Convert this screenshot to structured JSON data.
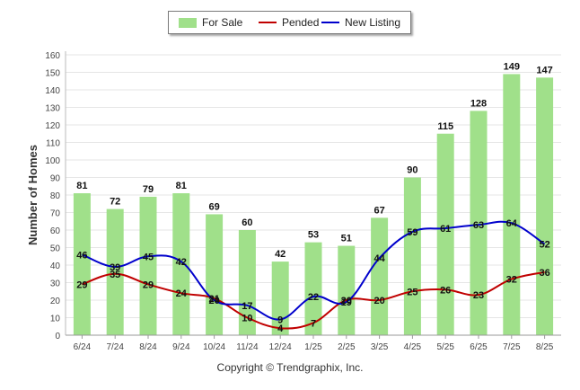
{
  "chart_data": {
    "type": "bar",
    "ylabel": "Number of Homes",
    "ylim": [
      0,
      160
    ],
    "yticks": [
      0,
      10,
      20,
      30,
      40,
      50,
      60,
      70,
      80,
      90,
      100,
      110,
      120,
      130,
      140,
      150,
      160
    ],
    "categories": [
      "6/24",
      "7/24",
      "8/24",
      "9/24",
      "10/24",
      "11/24",
      "12/24",
      "1/25",
      "2/25",
      "3/25",
      "4/25",
      "5/25",
      "6/25",
      "7/25",
      "8/25"
    ],
    "grid": true,
    "legend_position": "top-center",
    "series": [
      {
        "name": "For Sale",
        "kind": "bar",
        "color": "#a0e08a",
        "values": [
          81,
          72,
          79,
          81,
          69,
          60,
          42,
          53,
          51,
          67,
          90,
          115,
          128,
          149,
          147
        ]
      },
      {
        "name": "Pended",
        "kind": "line",
        "color": "#c00000",
        "values": [
          29,
          35,
          29,
          24,
          21,
          10,
          4,
          7,
          20,
          20,
          25,
          26,
          23,
          32,
          36
        ]
      },
      {
        "name": "New Listing",
        "kind": "line",
        "color": "#0000cc",
        "values": [
          46,
          39,
          45,
          42,
          20,
          17,
          9,
          22,
          19,
          44,
          59,
          61,
          63,
          64,
          52
        ]
      }
    ]
  },
  "footer": {
    "copyright": "Copyright © Trendgraphix, Inc."
  }
}
